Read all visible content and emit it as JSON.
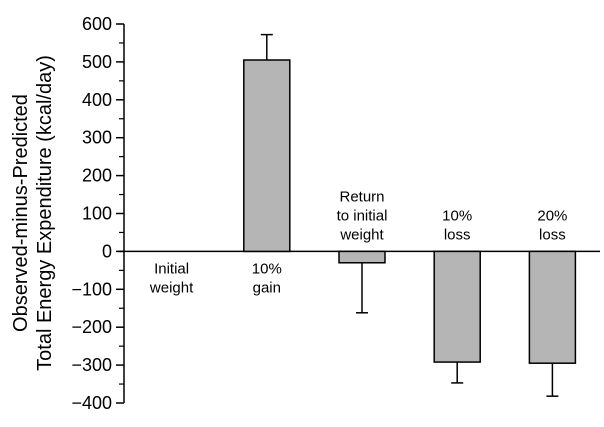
{
  "chart_data": {
    "type": "bar",
    "ylabel_line1": "Observed-minus-Predicted",
    "ylabel_line2": "Total Energy Expenditure (kcal/day)",
    "ylim": [
      -400,
      600
    ],
    "yticks": [
      600,
      500,
      400,
      300,
      200,
      100,
      0,
      -100,
      -200,
      -300,
      -400
    ],
    "ytick_labels": [
      "600",
      "500",
      "400",
      "300",
      "200",
      "100",
      "0",
      "−100",
      "−200",
      "−300",
      "−400"
    ],
    "grid": false,
    "categories": [
      {
        "label_lines": [
          "Initial",
          "weight"
        ],
        "value": 0,
        "error": 0
      },
      {
        "label_lines": [
          "10%",
          "gain"
        ],
        "value": 505,
        "error": 67
      },
      {
        "label_lines": [
          "Return",
          "to initial",
          "weight"
        ],
        "value": -30,
        "error": 132
      },
      {
        "label_lines": [
          "10%",
          "loss"
        ],
        "value": -292,
        "error": 55
      },
      {
        "label_lines": [
          "20%",
          "loss"
        ],
        "value": -295,
        "error": 87
      }
    ],
    "bar_color": "#b5b5b5",
    "bar_edge_color": "#000000"
  }
}
